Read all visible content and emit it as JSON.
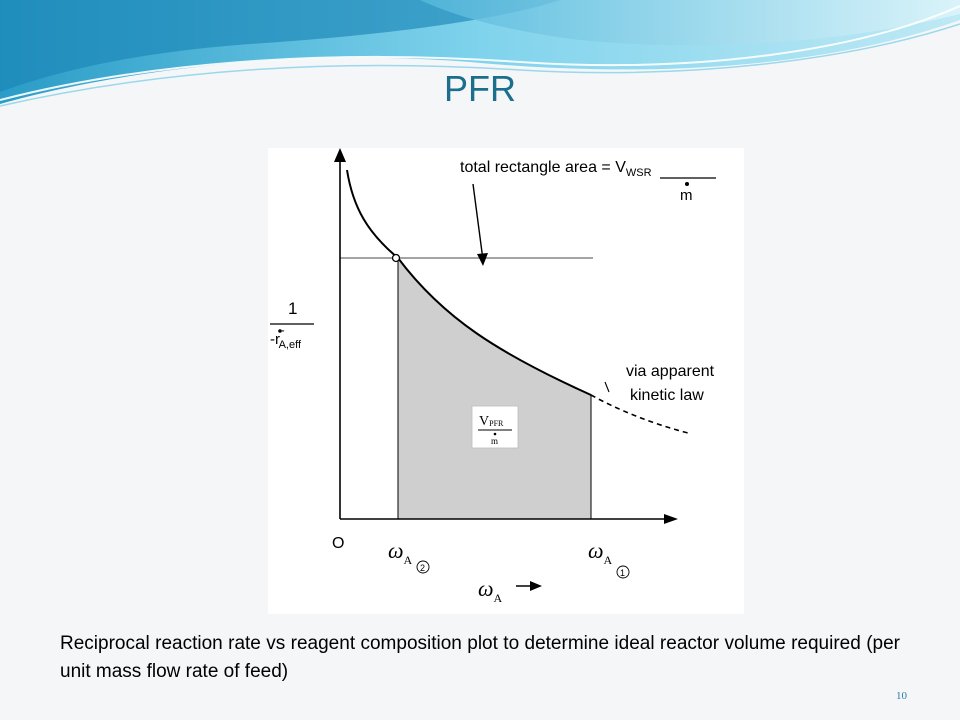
{
  "slide": {
    "title": "PFR",
    "caption": "Reciprocal reaction rate vs reagent composition plot to determine ideal reactor volume required (per unit mass flow rate of feed)",
    "page_number": "10",
    "accent_color": "#1b6f8c"
  },
  "diagram": {
    "annotation_top": {
      "line1": "total rectangle area = V",
      "line1_sub": "WSR",
      "denominator": "m"
    },
    "annotation_right": {
      "line1": "via apparent",
      "line2": "kinetic law"
    },
    "y_axis_label": {
      "numerator": "1",
      "denominator": "-r",
      "sup": "'''",
      "sub": "A,eff"
    },
    "origin_label": "O",
    "x_label_left": {
      "symbol": "ω",
      "sub": "A",
      "circled": "2"
    },
    "x_label_right": {
      "symbol": "ω",
      "sub": "A",
      "circled": "1"
    },
    "x_axis_label": {
      "symbol": "ω",
      "sub": "A"
    },
    "shaded_box": {
      "numerator": "V",
      "numerator_sub": "PFR",
      "denominator": "m"
    },
    "colors": {
      "shaded_area": "#cfcfcf",
      "lines": "#000000",
      "rectangle_line": "#6e6e6e"
    }
  }
}
